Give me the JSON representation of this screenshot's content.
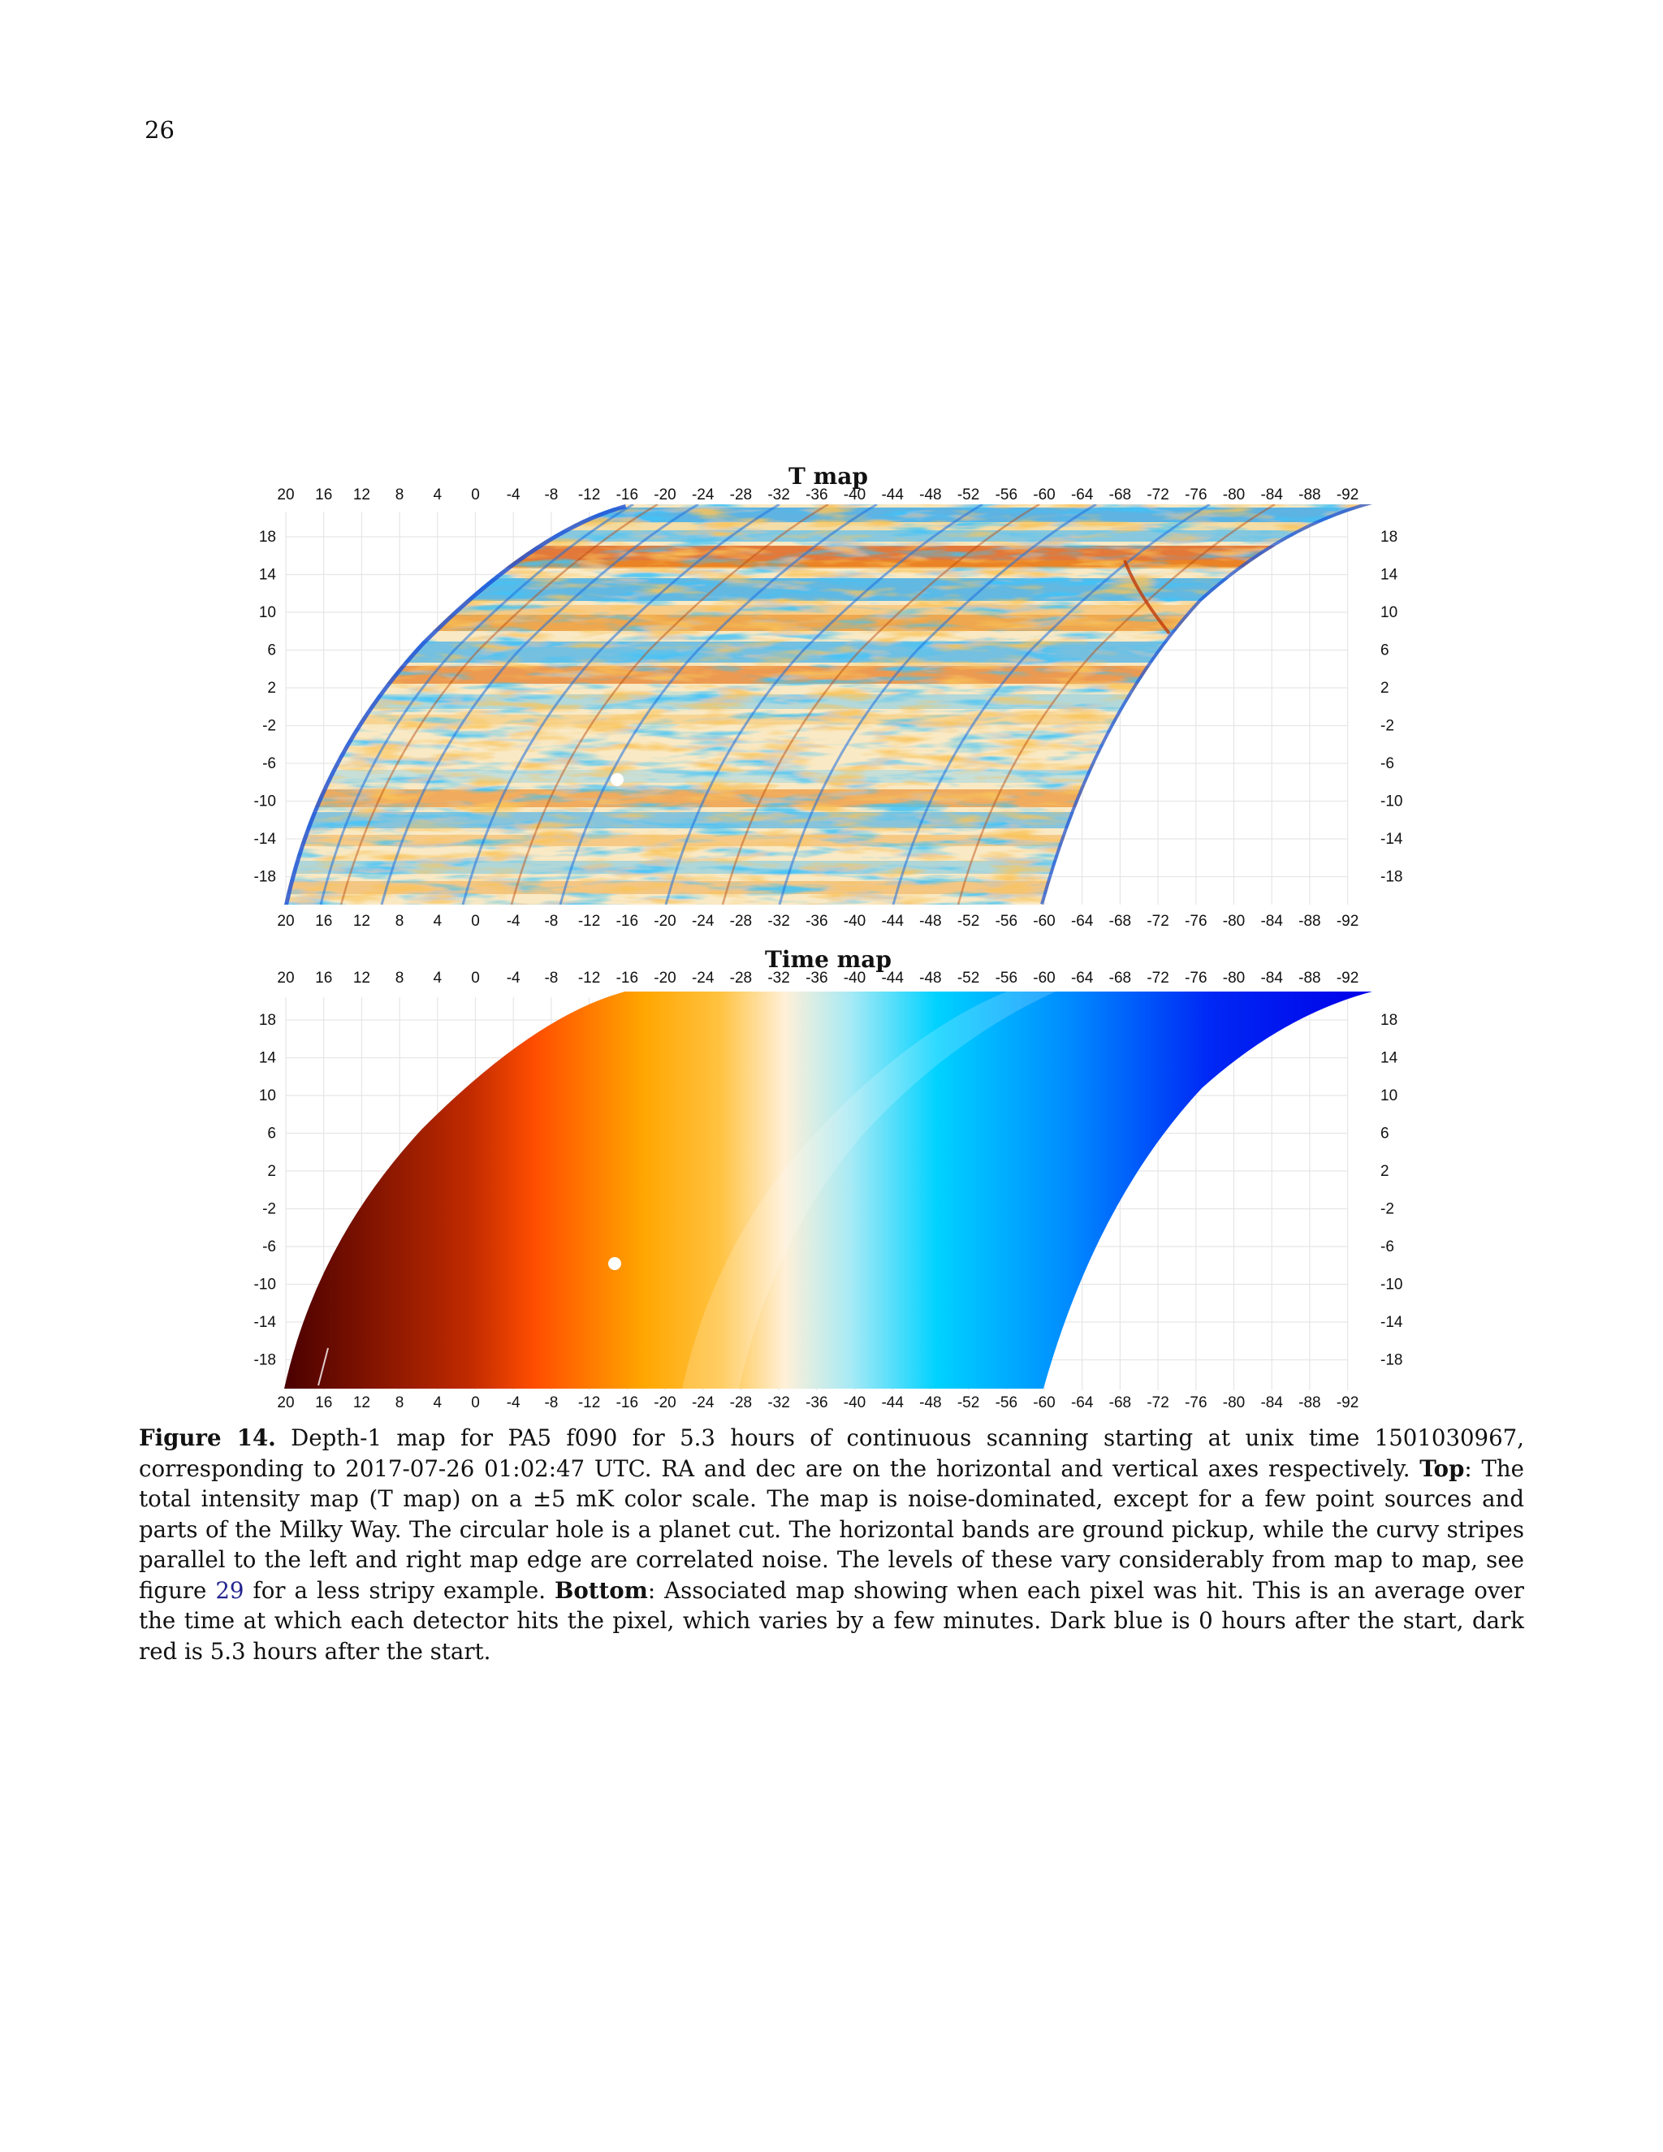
{
  "page_number": "26",
  "colors": {
    "t_map_low": "#0a3bd9",
    "t_map_mid_low": "#34b7f0",
    "t_map_neutral": "#fbeecd",
    "t_map_mid_high": "#f6a623",
    "t_map_high": "#d4530d",
    "time_map_stops": [
      "#5a0000",
      "#ff4d00",
      "#ffb000",
      "#fff2d8",
      "#00d6ff",
      "#007bff",
      "#0000ee"
    ],
    "hole": "#ffffff",
    "caption_ref": "#23238e"
  },
  "panels": [
    {
      "title": "T map",
      "x_ticks": [
        "20",
        "16",
        "12",
        "8",
        "4",
        "0",
        "-4",
        "-8",
        "-12",
        "-16",
        "-20",
        "-24",
        "-28",
        "-32",
        "-36",
        "-40",
        "-44",
        "-48",
        "-52",
        "-56",
        "-60",
        "-64",
        "-68",
        "-72",
        "-76",
        "-80",
        "-84",
        "-88",
        "-92"
      ],
      "y_ticks": [
        "18",
        "14",
        "10",
        "6",
        "2",
        "-2",
        "-6",
        "-10",
        "-14",
        "-18"
      ]
    },
    {
      "title": "Time map",
      "x_ticks": [
        "20",
        "16",
        "12",
        "8",
        "4",
        "0",
        "-4",
        "-8",
        "-12",
        "-16",
        "-20",
        "-24",
        "-28",
        "-32",
        "-36",
        "-40",
        "-44",
        "-48",
        "-52",
        "-56",
        "-60",
        "-64",
        "-68",
        "-72",
        "-76",
        "-80",
        "-84",
        "-88",
        "-92"
      ],
      "y_ticks": [
        "18",
        "14",
        "10",
        "6",
        "2",
        "-2",
        "-6",
        "-10",
        "-14",
        "-18"
      ]
    }
  ],
  "caption": {
    "label": "Figure 14.",
    "intro": " Depth-1 map for PA5 f090 for 5.3 hours of continuous scanning starting at unix time 1501030967, corresponding to 2017-07-26 01:02:47 UTC. RA and dec are on the horizontal and vertical axes respectively. ",
    "top_label": "Top",
    "top_text": ": The total intensity map (T map) on a ±5 mK color scale. The map is noise-dominated, except for a few point sources and parts of the Milky Way. The circular hole is a planet cut. The horizontal bands are ground pickup, while the curvy stripes parallel to the left and right map edge are correlated noise. The levels of these vary considerably from map to map, see figure ",
    "figure_ref": "29",
    "top_text_end": " for a less stripy example. ",
    "bottom_label": "Bottom",
    "bottom_text": ": Associated map showing when each pixel was hit. This is an average over the time at which each detector hits the pixel, which varies by a few minutes. Dark blue is 0 hours after the start, dark red is 5.3 hours after the start."
  }
}
